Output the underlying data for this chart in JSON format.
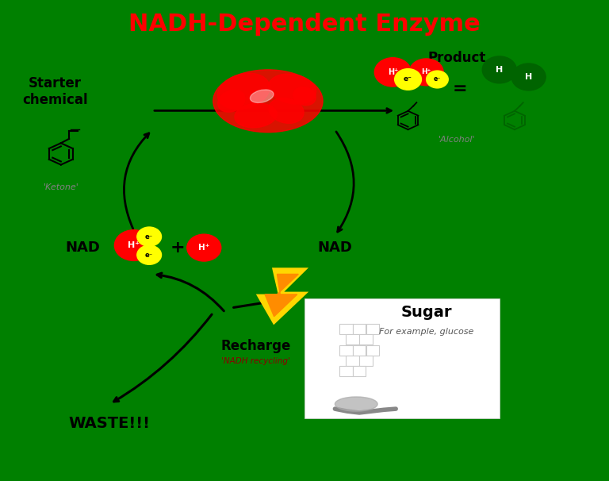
{
  "bg_color": "#008000",
  "title": "NADH-Dependent Enzyme",
  "title_color": "#ff0000",
  "title_fontsize": 22,
  "starter_chemical_label": "Starter\nchemical",
  "ketone_label": "'Ketone'",
  "product_label": "Product",
  "alcohol_label": "'Alcohol'",
  "nadh_label": "NAD",
  "nad_label": "NAD",
  "waste_label": "WASTE!!!",
  "recharge_label": "Recharge",
  "nadh_recycling_label": "'NADH recycling'",
  "sugar_label": "Sugar",
  "sugar_sub_label": "For example, glucose",
  "plus_label": "+",
  "red_color": "#ff0000",
  "yellow_color": "#ffff00",
  "dark_green_color": "#006400",
  "black_color": "#000000",
  "white_color": "#ffffff",
  "orange_color": "#ff8c00",
  "gold_color": "#ffd700",
  "gray_color": "#808080"
}
